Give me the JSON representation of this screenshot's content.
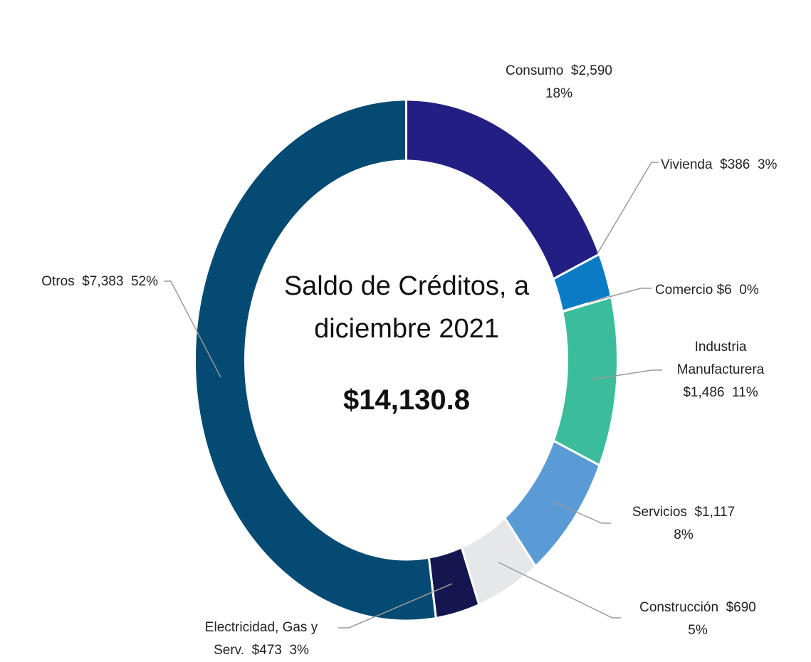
{
  "chart_data": {
    "type": "donut",
    "title": "Saldo de Créditos, a diciembre 2021",
    "center_value": "$14,130.8",
    "categories": [
      "Consumo",
      "Vivienda",
      "Comercio",
      "Industria Manufacturera",
      "Servicios",
      "Construcción",
      "Electricidad, Gas y Serv.",
      "Otros"
    ],
    "values": [
      2590,
      386,
      6,
      1486,
      1117,
      690,
      473,
      7383
    ],
    "value_labels": [
      "$2,590",
      "$386",
      "$6",
      "$1,486",
      "$1,117",
      "$690",
      "$473",
      "$7,383"
    ],
    "percentage_labels": [
      "18%",
      "3%",
      "0%",
      "11%",
      "8%",
      "5%",
      "3%",
      "52%"
    ],
    "colors": [
      "#231f82",
      "#0a7bc4",
      "#1f8a70",
      "#3bbd9c",
      "#5b9bd5",
      "#e6e7e9",
      "#15154f",
      "#054a72"
    ]
  }
}
